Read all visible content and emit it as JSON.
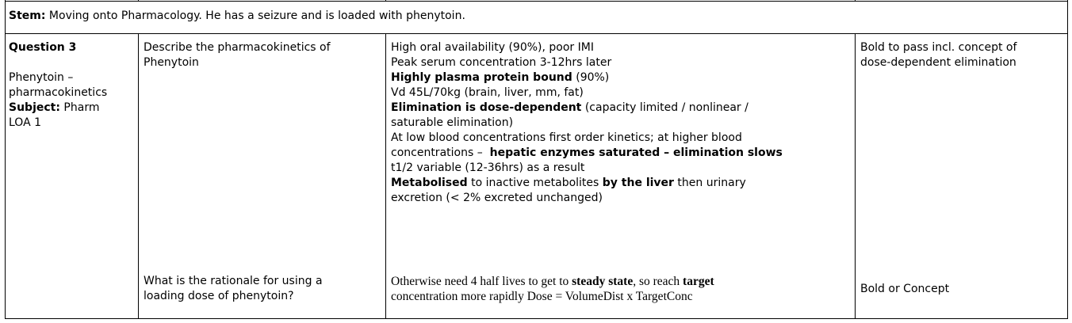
{
  "stem": {
    "label": "Stem:",
    "text": " Moving onto Pharmacology. He has a seizure and is loaded with phenytoin."
  },
  "question": {
    "title": "Question 3",
    "topic_line1": "Phenytoin –",
    "topic_line2": "pharmacokinetics",
    "subject_label": "Subject:",
    "subject_value": " Pharm",
    "loa": "LOA 1"
  },
  "q1": {
    "question_line1": "Describe the pharmacokinetics of",
    "question_line2": "Phenytoin",
    "answer": {
      "l1": "High oral availability (90%), poor IMI",
      "l2": "Peak serum concentration 3-12hrs later",
      "l3_bold": "Highly plasma protein bound",
      "l3_rest": " (90%)",
      "l4": "Vd 45L/70kg (brain, liver, mm, fat)",
      "l5_bold": "Elimination is dose-dependent",
      "l5_rest": " (capacity limited / nonlinear /",
      "l6": "saturable elimination)",
      "l7": "At low blood concentrations first order kinetics; at higher blood",
      "l8_pre": "concentrations –  ",
      "l8_bold": "hepatic enzymes saturated – elimination slows",
      "l9": "t1/2 variable (12-36hrs) as a result",
      "l10_bold1": "Metabolised",
      "l10_mid": " to inactive metabolites ",
      "l10_bold2": "by the liver",
      "l10_rest": " then urinary",
      "l11": "excretion (< 2% excreted unchanged)"
    },
    "pass_line1": "Bold to pass incl. concept of",
    "pass_line2": "dose-dependent elimination"
  },
  "q2": {
    "question_line1": "What is the rationale for using a",
    "question_line2": "loading dose of phenytoin?",
    "answer": {
      "l1_pre": "Otherwise need 4 half lives to get to ",
      "l1_bold1": "steady state",
      "l1_mid": ", so reach ",
      "l1_bold2": "target",
      "l2": "concentration more rapidly Dose = VolumeDist x TargetConc"
    },
    "pass": "Bold or Concept"
  }
}
